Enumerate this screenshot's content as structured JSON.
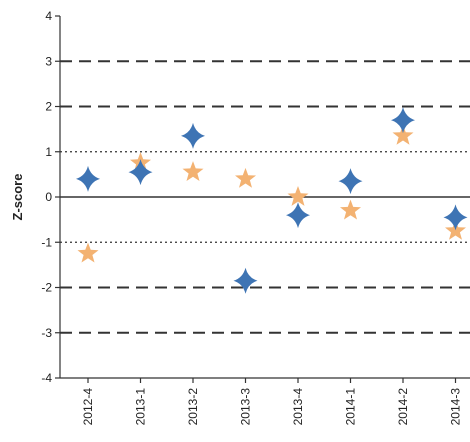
{
  "chart_data": {
    "type": "scatter",
    "title": "",
    "xlabel": "",
    "ylabel": "Z-score",
    "categories": [
      "2012-4",
      "2013-1",
      "2013-2",
      "2013-3",
      "2013-4",
      "2014-1",
      "2014-2",
      "2014-3"
    ],
    "ylim": [
      -4,
      4
    ],
    "yticks": [
      "4",
      "3",
      "2",
      "1",
      "0",
      "-1",
      "-2",
      "-3",
      "-4"
    ],
    "grid": false,
    "reference_lines": [
      {
        "y": 3,
        "style": "dashed"
      },
      {
        "y": 2,
        "style": "dashed"
      },
      {
        "y": 1,
        "style": "dotted"
      },
      {
        "y": 0,
        "style": "solid"
      },
      {
        "y": -1,
        "style": "dotted"
      },
      {
        "y": -2,
        "style": "dashed"
      },
      {
        "y": -3,
        "style": "dashed"
      }
    ],
    "series": [
      {
        "marker": "diamond",
        "color": "#3e74b4",
        "values": [
          0.4,
          0.55,
          1.35,
          -1.85,
          -0.4,
          0.35,
          1.7,
          -0.45
        ]
      },
      {
        "marker": "star",
        "color": "#f3b272",
        "values": [
          -1.25,
          0.75,
          0.55,
          0.4,
          0.0,
          -0.3,
          1.35,
          -0.75
        ]
      }
    ]
  }
}
